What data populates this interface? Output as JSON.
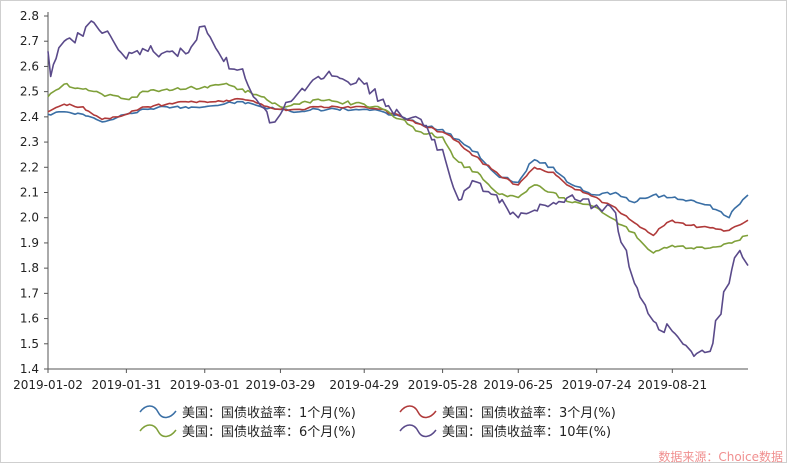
{
  "chart_data": {
    "type": "line",
    "ylim": [
      1.4,
      2.8
    ],
    "yticks": [
      "1.4",
      "1.5",
      "1.6",
      "1.7",
      "1.8",
      "1.9",
      "2.0",
      "2.1",
      "2.2",
      "2.3",
      "2.4",
      "2.5",
      "2.6",
      "2.7",
      "2.8"
    ],
    "x_start": "2019-01-02",
    "x_end": "2019-09-18",
    "xticks": [
      "2019-01-02",
      "2019-01-31",
      "2019-03-01",
      "2019-03-29",
      "2019-04-29",
      "2019-05-28",
      "2019-06-25",
      "2019-07-24",
      "2019-08-21"
    ],
    "grid": false,
    "legend_position": "bottom",
    "series": [
      {
        "name": "美国：国债收益率：1个月(%)",
        "color": "#3a6fa5",
        "points": [
          [
            "2019-01-02",
            2.41
          ],
          [
            "2019-01-08",
            2.42
          ],
          [
            "2019-01-15",
            2.41
          ],
          [
            "2019-01-22",
            2.38
          ],
          [
            "2019-01-31",
            2.41
          ],
          [
            "2019-02-08",
            2.43
          ],
          [
            "2019-02-15",
            2.44
          ],
          [
            "2019-02-22",
            2.44
          ],
          [
            "2019-03-01",
            2.44
          ],
          [
            "2019-03-08",
            2.45
          ],
          [
            "2019-03-15",
            2.46
          ],
          [
            "2019-03-22",
            2.44
          ],
          [
            "2019-03-29",
            2.43
          ],
          [
            "2019-04-05",
            2.42
          ],
          [
            "2019-04-12",
            2.43
          ],
          [
            "2019-04-19",
            2.43
          ],
          [
            "2019-04-29",
            2.43
          ],
          [
            "2019-05-06",
            2.42
          ],
          [
            "2019-05-13",
            2.4
          ],
          [
            "2019-05-20",
            2.37
          ],
          [
            "2019-05-28",
            2.35
          ],
          [
            "2019-06-03",
            2.31
          ],
          [
            "2019-06-10",
            2.26
          ],
          [
            "2019-06-17",
            2.17
          ],
          [
            "2019-06-25",
            2.14
          ],
          [
            "2019-07-01",
            2.23
          ],
          [
            "2019-07-08",
            2.2
          ],
          [
            "2019-07-15",
            2.13
          ],
          [
            "2019-07-24",
            2.09
          ],
          [
            "2019-07-31",
            2.1
          ],
          [
            "2019-08-07",
            2.06
          ],
          [
            "2019-08-14",
            2.09
          ],
          [
            "2019-08-21",
            2.08
          ],
          [
            "2019-08-28",
            2.07
          ],
          [
            "2019-09-04",
            2.05
          ],
          [
            "2019-09-11",
            2.0
          ],
          [
            "2019-09-18",
            2.09
          ]
        ]
      },
      {
        "name": "美国：国债收益率：3个月(%)",
        "color": "#b03a3a",
        "points": [
          [
            "2019-01-02",
            2.42
          ],
          [
            "2019-01-08",
            2.45
          ],
          [
            "2019-01-15",
            2.44
          ],
          [
            "2019-01-22",
            2.39
          ],
          [
            "2019-01-31",
            2.41
          ],
          [
            "2019-02-08",
            2.44
          ],
          [
            "2019-02-15",
            2.45
          ],
          [
            "2019-02-22",
            2.46
          ],
          [
            "2019-03-01",
            2.46
          ],
          [
            "2019-03-08",
            2.46
          ],
          [
            "2019-03-15",
            2.47
          ],
          [
            "2019-03-22",
            2.45
          ],
          [
            "2019-03-29",
            2.43
          ],
          [
            "2019-04-05",
            2.43
          ],
          [
            "2019-04-12",
            2.44
          ],
          [
            "2019-04-19",
            2.44
          ],
          [
            "2019-04-29",
            2.44
          ],
          [
            "2019-05-06",
            2.43
          ],
          [
            "2019-05-13",
            2.4
          ],
          [
            "2019-05-20",
            2.37
          ],
          [
            "2019-05-28",
            2.34
          ],
          [
            "2019-06-03",
            2.3
          ],
          [
            "2019-06-10",
            2.24
          ],
          [
            "2019-06-17",
            2.18
          ],
          [
            "2019-06-25",
            2.13
          ],
          [
            "2019-07-01",
            2.2
          ],
          [
            "2019-07-08",
            2.18
          ],
          [
            "2019-07-15",
            2.12
          ],
          [
            "2019-07-24",
            2.08
          ],
          [
            "2019-07-31",
            2.04
          ],
          [
            "2019-08-07",
            1.98
          ],
          [
            "2019-08-14",
            1.93
          ],
          [
            "2019-08-21",
            1.99
          ],
          [
            "2019-08-28",
            1.97
          ],
          [
            "2019-09-04",
            1.96
          ],
          [
            "2019-09-11",
            1.95
          ],
          [
            "2019-09-18",
            1.99
          ]
        ]
      },
      {
        "name": "美国：国债收益率：6个月(%)",
        "color": "#7fa03a",
        "points": [
          [
            "2019-01-02",
            2.48
          ],
          [
            "2019-01-08",
            2.53
          ],
          [
            "2019-01-15",
            2.51
          ],
          [
            "2019-01-22",
            2.49
          ],
          [
            "2019-01-31",
            2.47
          ],
          [
            "2019-02-08",
            2.5
          ],
          [
            "2019-02-15",
            2.51
          ],
          [
            "2019-02-22",
            2.51
          ],
          [
            "2019-03-01",
            2.52
          ],
          [
            "2019-03-08",
            2.53
          ],
          [
            "2019-03-15",
            2.51
          ],
          [
            "2019-03-22",
            2.48
          ],
          [
            "2019-03-29",
            2.44
          ],
          [
            "2019-04-05",
            2.45
          ],
          [
            "2019-04-12",
            2.47
          ],
          [
            "2019-04-19",
            2.46
          ],
          [
            "2019-04-29",
            2.45
          ],
          [
            "2019-05-06",
            2.43
          ],
          [
            "2019-05-13",
            2.39
          ],
          [
            "2019-05-20",
            2.34
          ],
          [
            "2019-05-28",
            2.32
          ],
          [
            "2019-06-03",
            2.22
          ],
          [
            "2019-06-10",
            2.18
          ],
          [
            "2019-06-17",
            2.1
          ],
          [
            "2019-06-25",
            2.08
          ],
          [
            "2019-07-01",
            2.13
          ],
          [
            "2019-07-08",
            2.1
          ],
          [
            "2019-07-15",
            2.06
          ],
          [
            "2019-07-24",
            2.04
          ],
          [
            "2019-07-31",
            1.99
          ],
          [
            "2019-08-07",
            1.94
          ],
          [
            "2019-08-14",
            1.86
          ],
          [
            "2019-08-21",
            1.89
          ],
          [
            "2019-08-28",
            1.88
          ],
          [
            "2019-09-04",
            1.88
          ],
          [
            "2019-09-11",
            1.9
          ],
          [
            "2019-09-18",
            1.93
          ]
        ]
      },
      {
        "name": "美国：国债收益率：10年(%)",
        "color": "#5a4a8a",
        "points": [
          [
            "2019-01-02",
            2.66
          ],
          [
            "2019-01-03",
            2.56
          ],
          [
            "2019-01-08",
            2.7
          ],
          [
            "2019-01-15",
            2.72
          ],
          [
            "2019-01-18",
            2.78
          ],
          [
            "2019-01-24",
            2.74
          ],
          [
            "2019-01-31",
            2.63
          ],
          [
            "2019-02-08",
            2.66
          ],
          [
            "2019-02-15",
            2.66
          ],
          [
            "2019-02-22",
            2.65
          ],
          [
            "2019-03-01",
            2.76
          ],
          [
            "2019-03-08",
            2.62
          ],
          [
            "2019-03-15",
            2.59
          ],
          [
            "2019-03-22",
            2.44
          ],
          [
            "2019-03-27",
            2.38
          ],
          [
            "2019-03-29",
            2.41
          ],
          [
            "2019-04-05",
            2.5
          ],
          [
            "2019-04-12",
            2.56
          ],
          [
            "2019-04-19",
            2.56
          ],
          [
            "2019-04-29",
            2.53
          ],
          [
            "2019-05-06",
            2.47
          ],
          [
            "2019-05-13",
            2.4
          ],
          [
            "2019-05-20",
            2.39
          ],
          [
            "2019-05-28",
            2.27
          ],
          [
            "2019-06-03",
            2.07
          ],
          [
            "2019-06-10",
            2.14
          ],
          [
            "2019-06-17",
            2.09
          ],
          [
            "2019-06-25",
            2.0
          ],
          [
            "2019-07-01",
            2.03
          ],
          [
            "2019-07-08",
            2.06
          ],
          [
            "2019-07-15",
            2.09
          ],
          [
            "2019-07-24",
            2.05
          ],
          [
            "2019-07-31",
            2.02
          ],
          [
            "2019-08-07",
            1.74
          ],
          [
            "2019-08-14",
            1.59
          ],
          [
            "2019-08-21",
            1.55
          ],
          [
            "2019-08-28",
            1.47
          ],
          [
            "2019-09-04",
            1.47
          ],
          [
            "2019-09-11",
            1.74
          ],
          [
            "2019-09-15",
            1.87
          ],
          [
            "2019-09-18",
            1.81
          ]
        ]
      }
    ]
  },
  "source": "数据来源：Choice数据"
}
